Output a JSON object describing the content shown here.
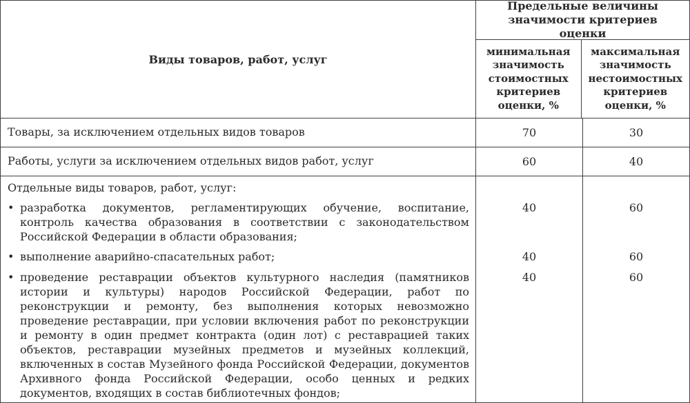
{
  "table": {
    "col1_header": "Виды товаров, работ, услуг",
    "group_header": "Предельные величины значимости критериев оценки",
    "subheaders": {
      "min": "минимальная значимость стоимостных критериев оценки, %",
      "max": "максимальная значимость нестоимостных критериев оценки, %"
    },
    "bullet_char": "•",
    "rows": [
      {
        "label": "Товары, за исключением отдельных видов товаров",
        "min": "70",
        "max": "30"
      },
      {
        "label": "Работы, услуги за исключением отдельных видов работ, услуг",
        "min": "60",
        "max": "40"
      }
    ],
    "group_row": {
      "intro": "Отдельные виды товаров, работ, услуг:",
      "items": [
        {
          "text": "разработка документов, регламентирующих обучение, воспитание, контроль качества образования в соответствии с законодательством Российской Федерации в области образования;",
          "min": "40",
          "max": "60"
        },
        {
          "text": "выполнение аварийно-спасательных работ;",
          "min": "40",
          "max": "60"
        },
        {
          "text": "проведение реставрации объектов культурного наследия (памятников истории и культуры) народов Российской Федерации, работ по реконструкции и ремонту, без выполнения которых невозможно проведение реставрации, при условии включения работ по реконструкции и ремонту в один предмет контракта (один лот) с реставрацией таких объектов, реставрации музейных предметов и музейных коллекций, включенных в состав Музейного фонда Российской Федерации, документов Архивного фонда Российской Федерации, особо ценных и редких документов, входящих в состав библиотечных фондов;",
          "min": "40",
          "max": "60"
        }
      ]
    }
  }
}
